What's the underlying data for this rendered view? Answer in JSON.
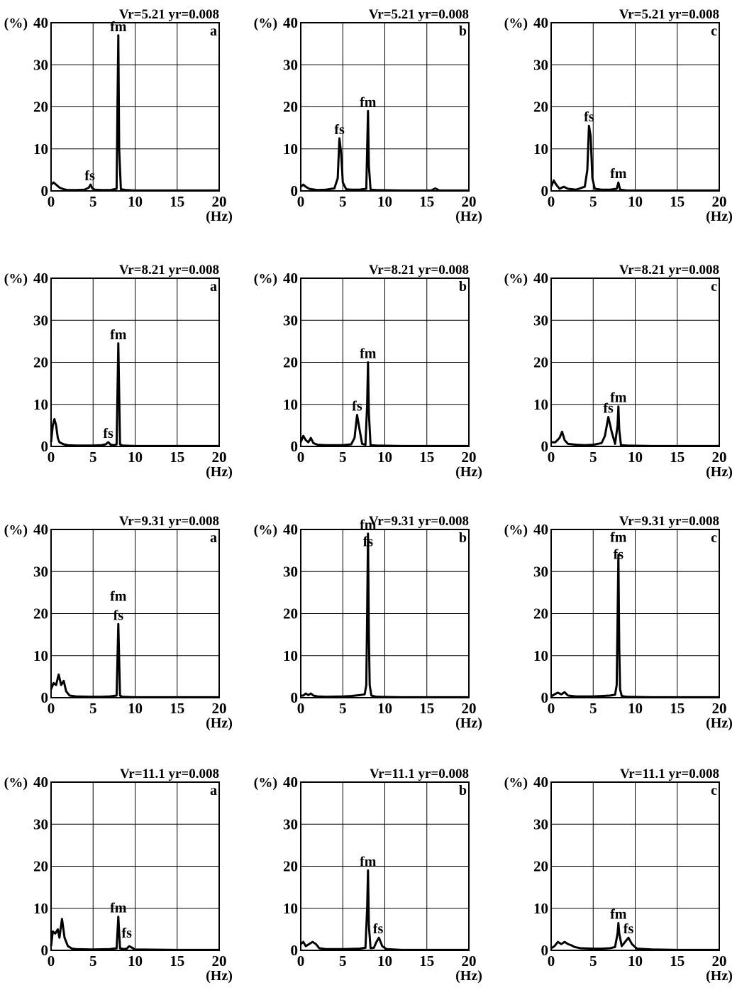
{
  "figure": {
    "y_unit_label": "(%)",
    "x_unit_label": "(Hz)"
  },
  "chart_data": [
    {
      "type": "line",
      "title": "Vr=5.21  yr=0.008",
      "panel_label": "a",
      "xlim": [
        0,
        20
      ],
      "ylim": [
        0,
        40
      ],
      "xticks": [
        0,
        5,
        10,
        15,
        20
      ],
      "yticks": [
        0,
        10,
        20,
        30,
        40
      ],
      "grid": true,
      "x": [
        0,
        0.3,
        0.6,
        1,
        1.5,
        2,
        3,
        4,
        4.5,
        4.7,
        4.9,
        5.2,
        6,
        7,
        7.8,
        7.9,
        8.0,
        8.1,
        8.3,
        9,
        10,
        12,
        15,
        20
      ],
      "y": [
        1.5,
        2,
        1.5,
        0.8,
        0.4,
        0.2,
        0.2,
        0.3,
        0.8,
        1.5,
        0.6,
        0.3,
        0.2,
        0.2,
        0.5,
        20,
        37,
        10,
        0.4,
        0.2,
        0.1,
        0.1,
        0.1,
        0.1
      ],
      "annotations": [
        {
          "text": "fm",
          "x": 8.0,
          "y": 37
        },
        {
          "text": "fs",
          "x": 4.6,
          "y": 1.5
        }
      ]
    },
    {
      "type": "line",
      "title": "Vr=5.21  yr=0.008",
      "panel_label": "b",
      "xlim": [
        0,
        20
      ],
      "ylim": [
        0,
        40
      ],
      "xticks": [
        0,
        5,
        10,
        15,
        20
      ],
      "yticks": [
        0,
        10,
        20,
        30,
        40
      ],
      "grid": true,
      "x": [
        0,
        0.3,
        0.6,
        1,
        2,
        3,
        4,
        4.4,
        4.6,
        4.8,
        5.0,
        5.4,
        6,
        7,
        7.8,
        7.9,
        8.0,
        8.1,
        8.3,
        9,
        12,
        15.5,
        16,
        16.5,
        20
      ],
      "y": [
        1,
        1.5,
        1,
        0.5,
        0.2,
        0.3,
        0.6,
        3,
        12.5,
        9,
        2,
        0.4,
        0.3,
        0.3,
        0.5,
        10,
        19,
        6,
        0.3,
        0.2,
        0.1,
        0.1,
        0.6,
        0.1,
        0.1
      ],
      "annotations": [
        {
          "text": "fs",
          "x": 4.6,
          "y": 12.5
        },
        {
          "text": "fm",
          "x": 8.0,
          "y": 19
        }
      ]
    },
    {
      "type": "line",
      "title": "Vr=5.21  yr=0.008",
      "panel_label": "c",
      "xlim": [
        0,
        20
      ],
      "ylim": [
        0,
        40
      ],
      "xticks": [
        0,
        5,
        10,
        15,
        20
      ],
      "yticks": [
        0,
        10,
        20,
        30,
        40
      ],
      "grid": true,
      "x": [
        0,
        0.3,
        0.6,
        1,
        1.5,
        2,
        3,
        4,
        4.3,
        4.5,
        4.7,
        4.9,
        5.2,
        6,
        7,
        7.8,
        8.0,
        8.2,
        9,
        12,
        15,
        20
      ],
      "y": [
        1,
        2.5,
        1.5,
        0.5,
        1,
        0.5,
        0.3,
        1,
        5,
        15.5,
        13,
        3,
        0.5,
        0.3,
        0.3,
        0.5,
        2,
        0.3,
        0.1,
        0.1,
        0.1,
        0.1
      ],
      "annotations": [
        {
          "text": "fs",
          "x": 4.5,
          "y": 15.5
        },
        {
          "text": "fm",
          "x": 8.0,
          "y": 2
        }
      ]
    },
    {
      "type": "line",
      "title": "Vr=8.21  yr=0.008",
      "panel_label": "a",
      "xlim": [
        0,
        20
      ],
      "ylim": [
        0,
        40
      ],
      "xticks": [
        0,
        5,
        10,
        15,
        20
      ],
      "yticks": [
        0,
        10,
        20,
        30,
        40
      ],
      "grid": true,
      "x": [
        0,
        0.2,
        0.4,
        0.6,
        0.8,
        1,
        1.5,
        2,
        3,
        5,
        6,
        6.5,
        6.8,
        7.1,
        7.5,
        7.8,
        8.0,
        8.2,
        8.5,
        10,
        15,
        20
      ],
      "y": [
        1,
        5,
        6.5,
        5,
        2,
        1,
        0.5,
        0.3,
        0.2,
        0.2,
        0.3,
        0.5,
        1,
        0.4,
        0.3,
        0.5,
        24.5,
        0.5,
        0.2,
        0.1,
        0.1,
        0.1
      ],
      "annotations": [
        {
          "text": "fm",
          "x": 8.0,
          "y": 24.5
        },
        {
          "text": "fs",
          "x": 6.8,
          "y": 1
        }
      ]
    },
    {
      "type": "line",
      "title": "Vr=8.21  yr=0.008",
      "panel_label": "b",
      "xlim": [
        0,
        20
      ],
      "ylim": [
        0,
        40
      ],
      "xticks": [
        0,
        5,
        10,
        15,
        20
      ],
      "yticks": [
        0,
        10,
        20,
        30,
        40
      ],
      "grid": true,
      "x": [
        0,
        0.3,
        0.6,
        0.9,
        1.2,
        1.5,
        2,
        3,
        4,
        5,
        6,
        6.4,
        6.7,
        7.0,
        7.3,
        7.7,
        7.9,
        8.0,
        8.1,
        8.3,
        9,
        12,
        15,
        20
      ],
      "y": [
        1,
        2.5,
        1.5,
        1,
        2,
        0.8,
        0.4,
        0.3,
        0.3,
        0.3,
        0.5,
        2,
        7.5,
        4,
        0.6,
        0.4,
        10,
        20,
        8,
        0.3,
        0.2,
        0.1,
        0.1,
        0.1
      ],
      "annotations": [
        {
          "text": "fs",
          "x": 6.7,
          "y": 7.5
        },
        {
          "text": "fm",
          "x": 8.0,
          "y": 20
        }
      ]
    },
    {
      "type": "line",
      "title": "Vr=8.21  yr=0.008",
      "panel_label": "c",
      "xlim": [
        0,
        20
      ],
      "ylim": [
        0,
        40
      ],
      "xticks": [
        0,
        5,
        10,
        15,
        20
      ],
      "yticks": [
        0,
        10,
        20,
        30,
        40
      ],
      "grid": true,
      "x": [
        0,
        0.5,
        1,
        1.3,
        1.6,
        2,
        3,
        4,
        5,
        6,
        6.4,
        6.8,
        7.2,
        7.6,
        7.9,
        8.0,
        8.1,
        8.3,
        9,
        12,
        15,
        20
      ],
      "y": [
        1,
        1,
        2,
        3.5,
        1.5,
        0.6,
        0.4,
        0.3,
        0.4,
        0.8,
        2.5,
        7,
        3.5,
        0.6,
        5,
        9.5,
        4,
        0.3,
        0.2,
        0.1,
        0.1,
        0.1
      ],
      "annotations": [
        {
          "text": "fs",
          "x": 6.8,
          "y": 7
        },
        {
          "text": "fm",
          "x": 8.0,
          "y": 9.5
        }
      ]
    },
    {
      "type": "line",
      "title": "Vr=9.31  yr=0.008",
      "panel_label": "a",
      "xlim": [
        0,
        20
      ],
      "ylim": [
        0,
        40
      ],
      "xticks": [
        0,
        5,
        10,
        15,
        20
      ],
      "yticks": [
        0,
        10,
        20,
        30,
        40
      ],
      "grid": true,
      "x": [
        0,
        0.3,
        0.6,
        0.9,
        1.2,
        1.5,
        1.8,
        2.2,
        3,
        5,
        6,
        7,
        7.8,
        8.0,
        8.2,
        8.5,
        10,
        15,
        20
      ],
      "y": [
        2,
        3.5,
        3,
        5.5,
        3,
        4,
        1.5,
        0.5,
        0.3,
        0.2,
        0.2,
        0.3,
        0.5,
        17.5,
        0.5,
        0.2,
        0.1,
        0.1,
        0.1
      ],
      "annotations": [
        {
          "text": "fm",
          "x": 8.0,
          "y": 22
        },
        {
          "text": "fs",
          "x": 8.0,
          "y": 17.5
        }
      ]
    },
    {
      "type": "line",
      "title": "Vr=9.31  yr=0.008",
      "panel_label": "b",
      "xlim": [
        0,
        20
      ],
      "ylim": [
        0,
        40
      ],
      "xticks": [
        0,
        5,
        10,
        15,
        20
      ],
      "yticks": [
        0,
        10,
        20,
        30,
        40
      ],
      "grid": true,
      "x": [
        0,
        0.3,
        0.6,
        0.9,
        1.2,
        1.5,
        2,
        3,
        5,
        6,
        7,
        7.6,
        7.8,
        7.9,
        8.0,
        8.1,
        8.2,
        8.4,
        9,
        12,
        15,
        20
      ],
      "y": [
        0.5,
        0.5,
        1,
        0.6,
        1,
        0.5,
        0.3,
        0.2,
        0.3,
        0.4,
        0.6,
        0.8,
        3,
        20,
        39,
        15,
        3,
        0.5,
        0.2,
        0.1,
        0.1,
        0.1
      ],
      "annotations": [
        {
          "text": "fm",
          "x": 8.0,
          "y": 39
        },
        {
          "text": "fs",
          "x": 8.0,
          "y": 35
        }
      ]
    },
    {
      "type": "line",
      "title": "Vr=9.31  yr=0.008",
      "panel_label": "c",
      "xlim": [
        0,
        20
      ],
      "ylim": [
        0,
        40
      ],
      "xticks": [
        0,
        5,
        10,
        15,
        20
      ],
      "yticks": [
        0,
        10,
        20,
        30,
        40
      ],
      "grid": true,
      "x": [
        0,
        0.4,
        0.8,
        1.2,
        1.6,
        2,
        3,
        5,
        6,
        7,
        7.6,
        7.8,
        7.9,
        8.0,
        8.1,
        8.2,
        8.4,
        9,
        12,
        15,
        20
      ],
      "y": [
        0.3,
        0.8,
        1.2,
        0.8,
        1.3,
        0.5,
        0.3,
        0.3,
        0.4,
        0.5,
        0.7,
        3,
        18,
        34,
        12,
        2,
        0.4,
        0.2,
        0.1,
        0.1,
        0.1
      ],
      "annotations": [
        {
          "text": "fm",
          "x": 8.0,
          "y": 36
        },
        {
          "text": "fs",
          "x": 8.0,
          "y": 32
        }
      ]
    },
    {
      "type": "line",
      "title": "Vr=11.1  yr=0.008",
      "panel_label": "a",
      "xlim": [
        0,
        20
      ],
      "ylim": [
        0,
        40
      ],
      "xticks": [
        0,
        5,
        10,
        15,
        20
      ],
      "yticks": [
        0,
        10,
        20,
        30,
        40
      ],
      "grid": true,
      "x": [
        0,
        0.2,
        0.5,
        0.8,
        1.0,
        1.3,
        1.6,
        2.0,
        2.5,
        3,
        5,
        7,
        7.8,
        8.0,
        8.2,
        8.6,
        9,
        9.3,
        10,
        15,
        20
      ],
      "y": [
        1,
        4.5,
        4,
        5,
        3,
        7.5,
        3,
        1,
        0.4,
        0.3,
        0.2,
        0.3,
        0.5,
        8,
        0.5,
        0.3,
        0.4,
        1,
        0.2,
        0.1,
        0.1
      ],
      "annotations": [
        {
          "text": "fm",
          "x": 8.0,
          "y": 8
        },
        {
          "text": "fs",
          "x": 9.0,
          "y": 2
        }
      ]
    },
    {
      "type": "line",
      "title": "Vr=11.1  yr=0.008",
      "panel_label": "b",
      "xlim": [
        0,
        20
      ],
      "ylim": [
        0,
        40
      ],
      "xticks": [
        0,
        5,
        10,
        15,
        20
      ],
      "yticks": [
        0,
        10,
        20,
        30,
        40
      ],
      "grid": true,
      "x": [
        0,
        0.3,
        0.6,
        1,
        1.4,
        1.8,
        2.2,
        3,
        5,
        7,
        7.7,
        7.9,
        8.0,
        8.1,
        8.3,
        8.7,
        9.0,
        9.3,
        9.7,
        10.2,
        12,
        15,
        20
      ],
      "y": [
        1.5,
        2,
        1,
        1.5,
        2,
        1.5,
        0.5,
        0.3,
        0.3,
        0.4,
        0.6,
        10,
        19,
        6,
        0.5,
        0.6,
        2,
        3,
        1,
        0.3,
        0.1,
        0.1,
        0.1
      ],
      "annotations": [
        {
          "text": "fm",
          "x": 8.0,
          "y": 19
        },
        {
          "text": "fs",
          "x": 9.2,
          "y": 3
        }
      ]
    },
    {
      "type": "line",
      "title": "Vr=11.1  yr=0.008",
      "panel_label": "c",
      "xlim": [
        0,
        20
      ],
      "ylim": [
        0,
        40
      ],
      "xticks": [
        0,
        5,
        10,
        15,
        20
      ],
      "yticks": [
        0,
        10,
        20,
        30,
        40
      ],
      "grid": true,
      "x": [
        0,
        0.4,
        0.8,
        1.2,
        1.6,
        2.0,
        2.4,
        2.8,
        3.5,
        5,
        6,
        7,
        7.6,
        7.9,
        8.0,
        8.1,
        8.4,
        8.8,
        9.2,
        9.6,
        10.2,
        12,
        15,
        20
      ],
      "y": [
        0.5,
        1,
        2,
        1.5,
        2,
        1.5,
        1.2,
        0.8,
        0.5,
        0.4,
        0.4,
        0.5,
        0.8,
        4,
        6.5,
        4,
        1,
        2,
        3,
        1.5,
        0.4,
        0.2,
        0.1,
        0.1
      ],
      "annotations": [
        {
          "text": "fm",
          "x": 8.0,
          "y": 6.5
        },
        {
          "text": "fs",
          "x": 9.2,
          "y": 3
        }
      ]
    }
  ]
}
